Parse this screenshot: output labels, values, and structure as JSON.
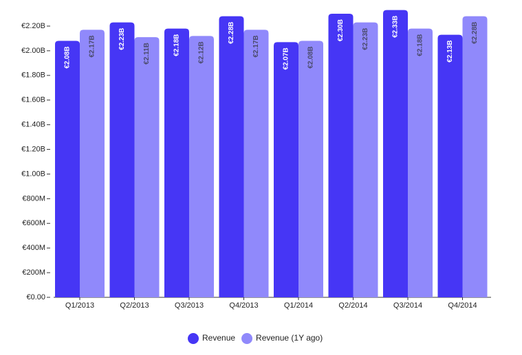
{
  "chart_data": {
    "type": "bar",
    "categories": [
      "Q1/2013",
      "Q2/2013",
      "Q3/2013",
      "Q4/2013",
      "Q1/2014",
      "Q2/2014",
      "Q3/2014",
      "Q4/2014"
    ],
    "series": [
      {
        "name": "Revenue",
        "color": "#4636f5",
        "values": [
          2080000000,
          2230000000,
          2180000000,
          2280000000,
          2070000000,
          2300000000,
          2330000000,
          2130000000
        ],
        "value_labels": [
          "€2.08B",
          "€2.23B",
          "€2.18B",
          "€2.28B",
          "€2.07B",
          "€2.30B",
          "€2.33B",
          "€2.13B"
        ]
      },
      {
        "name": "Revenue (1Y ago)",
        "color": "#9089fb",
        "values": [
          2170000000,
          2110000000,
          2120000000,
          2170000000,
          2080000000,
          2230000000,
          2180000000,
          2280000000
        ],
        "value_labels": [
          "€2.17B",
          "€2.11B",
          "€2.12B",
          "€2.17B",
          "€2.08B",
          "€2.23B",
          "€2.18B",
          "€2.28B"
        ]
      }
    ],
    "ylim": [
      0,
      2200000000
    ],
    "yticks": [
      {
        "value": 0,
        "label": "€0.00"
      },
      {
        "value": 200000000,
        "label": "€200M"
      },
      {
        "value": 400000000,
        "label": "€400M"
      },
      {
        "value": 600000000,
        "label": "€600M"
      },
      {
        "value": 800000000,
        "label": "€800M"
      },
      {
        "value": 1000000000,
        "label": "€1.00B"
      },
      {
        "value": 1200000000,
        "label": "€1.20B"
      },
      {
        "value": 1400000000,
        "label": "€1.40B"
      },
      {
        "value": 1600000000,
        "label": "€1.60B"
      },
      {
        "value": 1800000000,
        "label": "€1.80B"
      },
      {
        "value": 2000000000,
        "label": "€2.00B"
      },
      {
        "value": 2200000000,
        "label": "€2.20B"
      }
    ],
    "legend": "bottom"
  }
}
